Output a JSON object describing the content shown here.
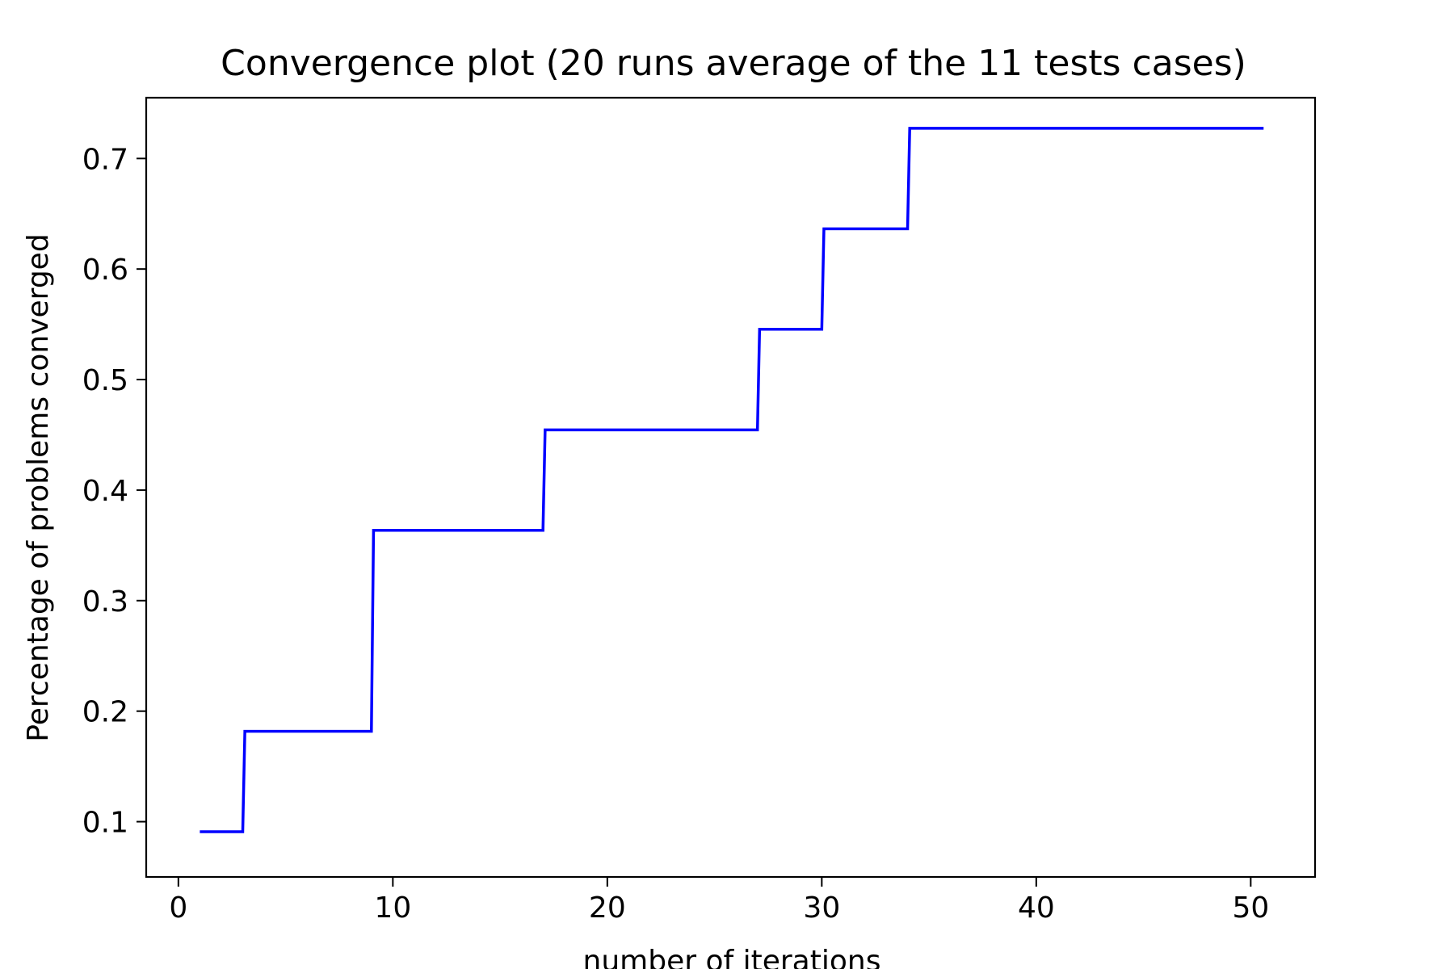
{
  "chart_data": {
    "type": "line",
    "title": "Convergence plot (20 runs average of the 11 tests cases)",
    "xlabel": "number of iterations",
    "ylabel": "Percentage of problems converged",
    "xlim": [
      -1.5,
      53.0
    ],
    "ylim": [
      0.05,
      0.755
    ],
    "xticks": [
      0,
      10,
      20,
      30,
      40,
      50
    ],
    "xtick_labels": [
      "0",
      "10",
      "20",
      "30",
      "40",
      "50"
    ],
    "yticks": [
      0.1,
      0.2,
      0.3,
      0.4,
      0.5,
      0.6,
      0.7
    ],
    "ytick_labels": [
      "0.1",
      "0.2",
      "0.3",
      "0.4",
      "0.5",
      "0.6",
      "0.7"
    ],
    "grid": false,
    "legend": false,
    "series": [
      {
        "color": "#0000ff",
        "x": [
          1,
          3,
          3.1,
          9,
          9.1,
          17,
          17.1,
          27,
          27.1,
          30,
          30.1,
          34,
          34.1,
          50.6
        ],
        "y": [
          0.0909,
          0.0909,
          0.1818,
          0.1818,
          0.3636,
          0.3636,
          0.4545,
          0.4545,
          0.5455,
          0.5455,
          0.6364,
          0.6364,
          0.7273,
          0.7273
        ]
      }
    ]
  }
}
